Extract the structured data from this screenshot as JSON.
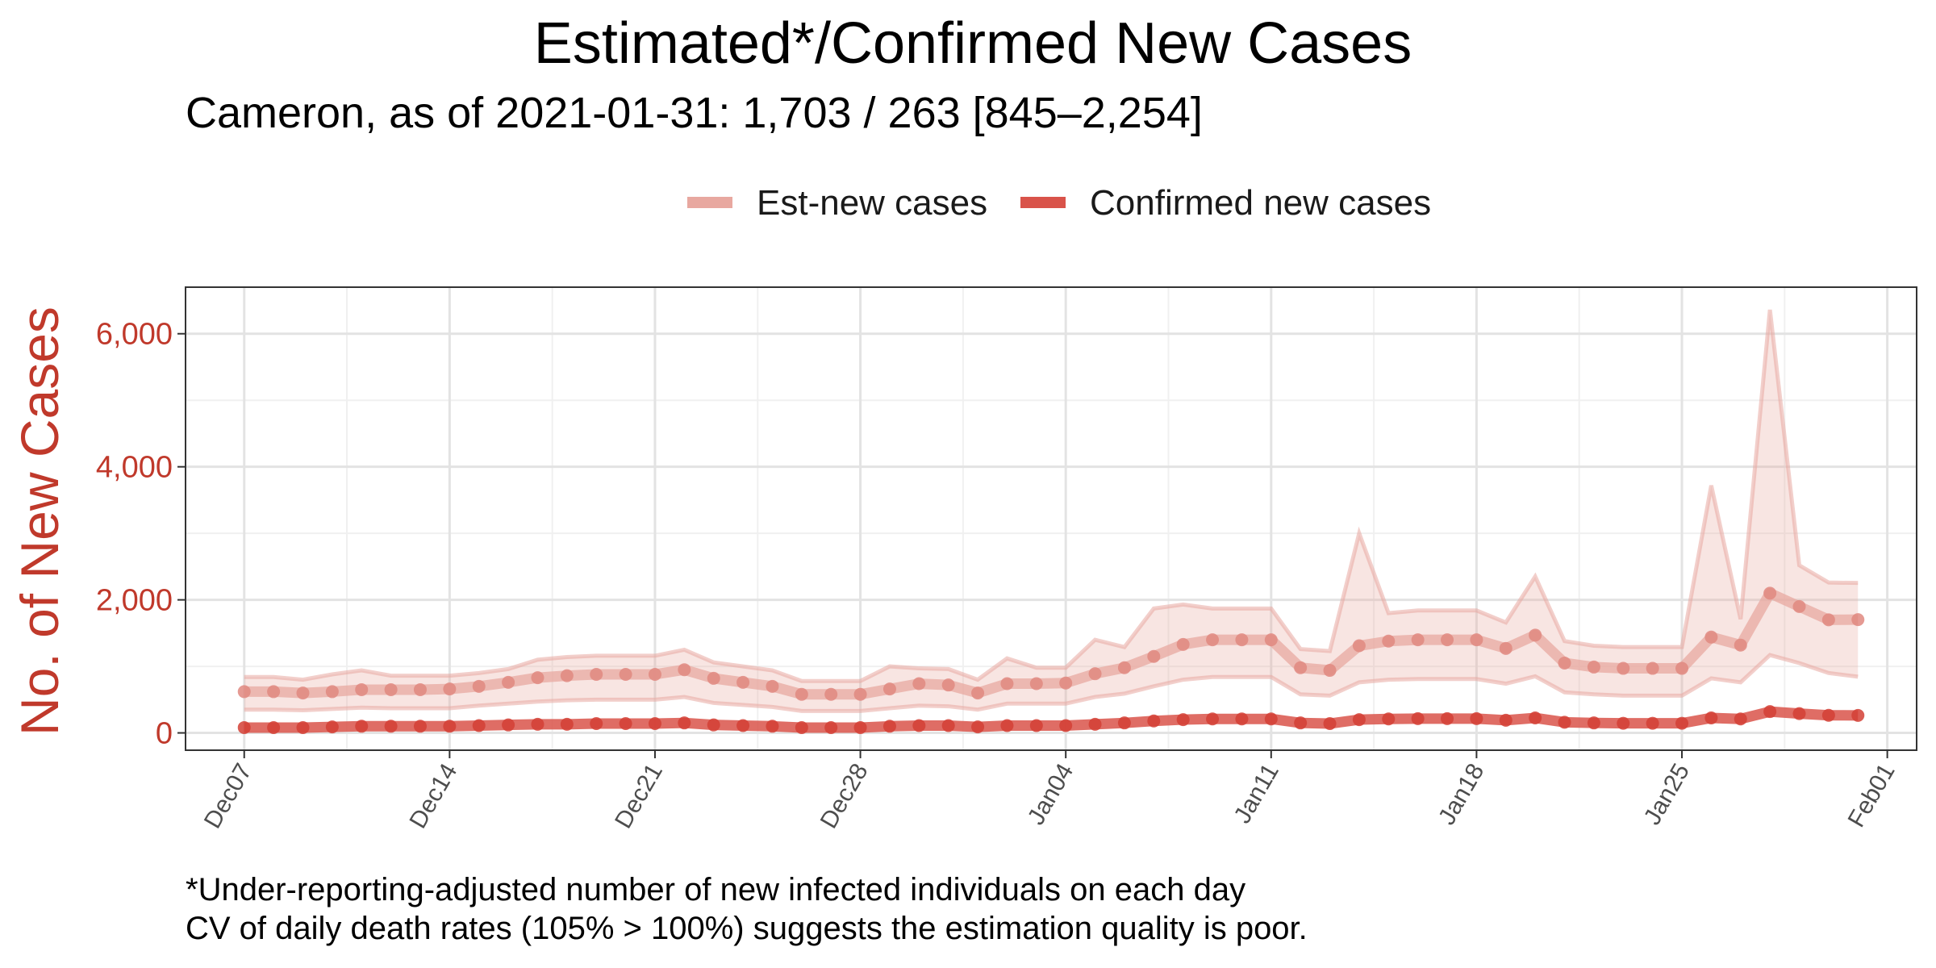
{
  "chart_data": {
    "type": "line",
    "title": "Estimated*/Confirmed New Cases",
    "subtitle": "Cameron, as of 2021-01-31: 1,703 / 263 [845–2,254]",
    "ylabel": "No. of New Cases",
    "xlabel": "",
    "ylim": [
      -260,
      6700
    ],
    "y_ticks": [
      0,
      2000,
      4000,
      6000
    ],
    "y_tick_labels": [
      "0",
      "2,000",
      "4,000",
      "6,000"
    ],
    "x_start": "2020-12-07",
    "x_ticks": [
      "2020-12-07",
      "2020-12-14",
      "2020-12-21",
      "2020-12-28",
      "2021-01-04",
      "2021-01-11",
      "2021-01-18",
      "2021-01-25",
      "2021-02-01"
    ],
    "x_tick_labels": [
      "Dec07",
      "Dec14",
      "Dec21",
      "Dec28",
      "Jan04",
      "Jan11",
      "Jan18",
      "Jan25",
      "Feb01"
    ],
    "xlim": [
      "2020-12-05",
      "2021-02-02"
    ],
    "legend_position": "top",
    "grid": true,
    "dates": [
      "2020-12-07",
      "2020-12-08",
      "2020-12-09",
      "2020-12-10",
      "2020-12-11",
      "2020-12-12",
      "2020-12-13",
      "2020-12-14",
      "2020-12-15",
      "2020-12-16",
      "2020-12-17",
      "2020-12-18",
      "2020-12-19",
      "2020-12-20",
      "2020-12-21",
      "2020-12-22",
      "2020-12-23",
      "2020-12-24",
      "2020-12-25",
      "2020-12-26",
      "2020-12-27",
      "2020-12-28",
      "2020-12-29",
      "2020-12-30",
      "2020-12-31",
      "2021-01-01",
      "2021-01-02",
      "2021-01-03",
      "2021-01-04",
      "2021-01-05",
      "2021-01-06",
      "2021-01-07",
      "2021-01-08",
      "2021-01-09",
      "2021-01-10",
      "2021-01-11",
      "2021-01-12",
      "2021-01-13",
      "2021-01-14",
      "2021-01-15",
      "2021-01-16",
      "2021-01-17",
      "2021-01-18",
      "2021-01-19",
      "2021-01-20",
      "2021-01-21",
      "2021-01-22",
      "2021-01-23",
      "2021-01-24",
      "2021-01-25",
      "2021-01-26",
      "2021-01-27",
      "2021-01-28",
      "2021-01-29",
      "2021-01-30",
      "2021-01-31"
    ],
    "series": [
      {
        "name": "Est-new cases",
        "color": "#e8a8a0",
        "values": [
          620,
          620,
          600,
          620,
          650,
          650,
          650,
          660,
          700,
          760,
          830,
          860,
          880,
          880,
          880,
          950,
          820,
          760,
          700,
          580,
          580,
          580,
          660,
          740,
          720,
          600,
          740,
          740,
          750,
          890,
          980,
          1150,
          1330,
          1400,
          1400,
          1400,
          980,
          940,
          1310,
          1380,
          1400,
          1400,
          1400,
          1270,
          1470,
          1050,
          990,
          970,
          970,
          970,
          1440,
          1320,
          2100,
          1900,
          1700,
          1703
        ],
        "upper": [
          840,
          840,
          800,
          880,
          940,
          860,
          860,
          860,
          900,
          960,
          1100,
          1140,
          1160,
          1160,
          1160,
          1250,
          1060,
          1000,
          940,
          780,
          780,
          780,
          1000,
          970,
          960,
          800,
          1120,
          980,
          980,
          1400,
          1290,
          1870,
          1930,
          1870,
          1870,
          1870,
          1260,
          1230,
          3000,
          1800,
          1840,
          1840,
          1840,
          1660,
          2350,
          1380,
          1310,
          1290,
          1290,
          1290,
          3720,
          1710,
          6360,
          2520,
          2260,
          2254
        ],
        "lower": [
          350,
          350,
          340,
          360,
          380,
          370,
          370,
          370,
          410,
          440,
          470,
          490,
          500,
          500,
          500,
          540,
          450,
          420,
          390,
          330,
          330,
          330,
          370,
          410,
          400,
          350,
          440,
          440,
          440,
          540,
          590,
          700,
          800,
          840,
          840,
          840,
          580,
          560,
          760,
          800,
          810,
          810,
          810,
          740,
          850,
          610,
          580,
          560,
          560,
          560,
          820,
          760,
          1170,
          1050,
          900,
          845
        ]
      },
      {
        "name": "Confirmed new cases",
        "color": "#d9534a",
        "values": [
          80,
          80,
          80,
          90,
          100,
          100,
          100,
          100,
          110,
          120,
          130,
          130,
          140,
          140,
          140,
          150,
          120,
          110,
          100,
          80,
          80,
          80,
          100,
          110,
          110,
          90,
          110,
          110,
          110,
          130,
          150,
          180,
          200,
          210,
          210,
          210,
          150,
          140,
          200,
          210,
          215,
          215,
          215,
          190,
          225,
          160,
          150,
          145,
          145,
          145,
          225,
          210,
          320,
          290,
          265,
          263
        ]
      }
    ],
    "footnote_lines": [
      "*Under-reporting-adjusted number of new infected individuals on each day",
      "CV of daily death rates (105% > 100%) suggests the estimation quality is poor."
    ]
  }
}
